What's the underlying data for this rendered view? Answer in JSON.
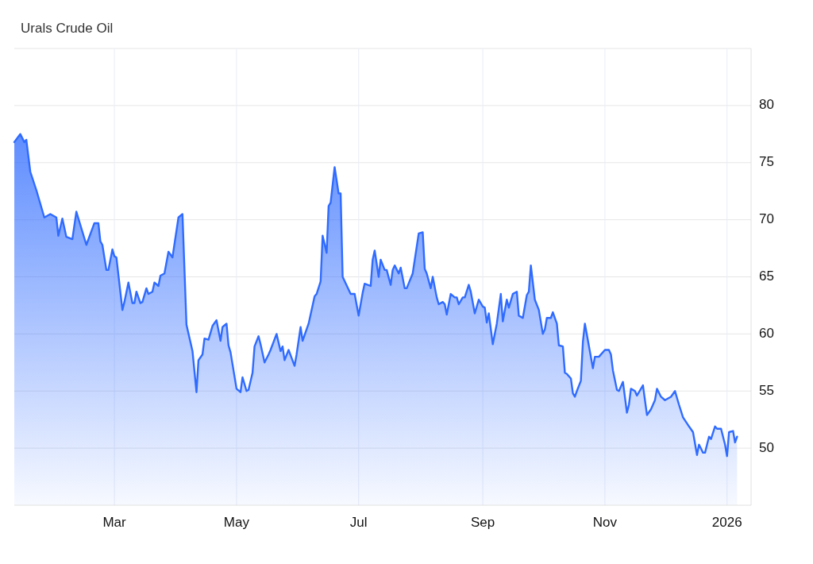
{
  "chart_data": {
    "type": "area",
    "title": "Urals Crude Oil",
    "grid": true,
    "xlim": [
      "2025-01-10",
      "2026-01-13"
    ],
    "xticks": [
      {
        "value": "2025-03-01",
        "label": "Mar"
      },
      {
        "value": "2025-05-01",
        "label": "May"
      },
      {
        "value": "2025-07-01",
        "label": "Jul"
      },
      {
        "value": "2025-09-01",
        "label": "Sep"
      },
      {
        "value": "2025-11-01",
        "label": "Nov"
      },
      {
        "value": "2026-01-01",
        "label": "2026"
      }
    ],
    "ylim": [
      45,
      85
    ],
    "yticks": [
      50,
      55,
      60,
      65,
      70,
      75,
      80
    ],
    "series": [
      {
        "color": "#2f6bff",
        "x": [
          "2025-01-10",
          "2025-01-13",
          "2025-01-15",
          "2025-01-16",
          "2025-01-18",
          "2025-01-21",
          "2025-01-23",
          "2025-01-25",
          "2025-01-28",
          "2025-01-31",
          "2025-02-01",
          "2025-02-03",
          "2025-02-05",
          "2025-02-08",
          "2025-02-10",
          "2025-02-15",
          "2025-02-19",
          "2025-02-21",
          "2025-02-22",
          "2025-02-23",
          "2025-02-25",
          "2025-02-26",
          "2025-02-28",
          "2025-03-01",
          "2025-03-02",
          "2025-03-05",
          "2025-03-06",
          "2025-03-08",
          "2025-03-10",
          "2025-03-11",
          "2025-03-12",
          "2025-03-14",
          "2025-03-15",
          "2025-03-17",
          "2025-03-18",
          "2025-03-20",
          "2025-03-21",
          "2025-03-23",
          "2025-03-24",
          "2025-03-26",
          "2025-03-28",
          "2025-03-30",
          "2025-04-02",
          "2025-04-04",
          "2025-04-06",
          "2025-04-09",
          "2025-04-11",
          "2025-04-12",
          "2025-04-14",
          "2025-04-15",
          "2025-04-17",
          "2025-04-19",
          "2025-04-21",
          "2025-04-23",
          "2025-04-24",
          "2025-04-26",
          "2025-04-27",
          "2025-04-28",
          "2025-05-01",
          "2025-05-03",
          "2025-05-04",
          "2025-05-06",
          "2025-05-07",
          "2025-05-09",
          "2025-05-10",
          "2025-05-12",
          "2025-05-13",
          "2025-05-15",
          "2025-05-17",
          "2025-05-18",
          "2025-05-21",
          "2025-05-23",
          "2025-05-24",
          "2025-05-25",
          "2025-05-27",
          "2025-05-30",
          "2025-05-31",
          "2025-06-02",
          "2025-06-03",
          "2025-06-06",
          "2025-06-09",
          "2025-06-10",
          "2025-06-12",
          "2025-06-13",
          "2025-06-15",
          "2025-06-16",
          "2025-06-17",
          "2025-06-19",
          "2025-06-21",
          "2025-06-22",
          "2025-06-23",
          "2025-06-27",
          "2025-06-29",
          "2025-07-01",
          "2025-07-03",
          "2025-07-04",
          "2025-07-07",
          "2025-07-08",
          "2025-07-09",
          "2025-07-11",
          "2025-07-12",
          "2025-07-14",
          "2025-07-15",
          "2025-07-17",
          "2025-07-18",
          "2025-07-19",
          "2025-07-21",
          "2025-07-22",
          "2025-07-24",
          "2025-07-25",
          "2025-07-28",
          "2025-07-31",
          "2025-08-02",
          "2025-08-03",
          "2025-08-04",
          "2025-08-06",
          "2025-08-07",
          "2025-08-09",
          "2025-08-10",
          "2025-08-12",
          "2025-08-13",
          "2025-08-14",
          "2025-08-16",
          "2025-08-18",
          "2025-08-19",
          "2025-08-20",
          "2025-08-22",
          "2025-08-23",
          "2025-08-25",
          "2025-08-26",
          "2025-08-28",
          "2025-08-30",
          "2025-09-01",
          "2025-09-02",
          "2025-09-03",
          "2025-09-04",
          "2025-09-06",
          "2025-09-08",
          "2025-09-10",
          "2025-09-11",
          "2025-09-13",
          "2025-09-14",
          "2025-09-16",
          "2025-09-18",
          "2025-09-19",
          "2025-09-21",
          "2025-09-23",
          "2025-09-24",
          "2025-09-25",
          "2025-09-27",
          "2025-09-29",
          "2025-10-01",
          "2025-10-02",
          "2025-10-03",
          "2025-10-05",
          "2025-10-06",
          "2025-10-08",
          "2025-10-09",
          "2025-10-11",
          "2025-10-12",
          "2025-10-13",
          "2025-10-15",
          "2025-10-16",
          "2025-10-17",
          "2025-10-18",
          "2025-10-20",
          "2025-10-21",
          "2025-10-22",
          "2025-10-26",
          "2025-10-27",
          "2025-10-29",
          "2025-11-01",
          "2025-11-03",
          "2025-11-04",
          "2025-11-05",
          "2025-11-07",
          "2025-11-08",
          "2025-11-10",
          "2025-11-12",
          "2025-11-13",
          "2025-11-14",
          "2025-11-16",
          "2025-11-17",
          "2025-11-20",
          "2025-11-22",
          "2025-11-24",
          "2025-11-26",
          "2025-11-27",
          "2025-11-29",
          "2025-12-01",
          "2025-12-04",
          "2025-12-06",
          "2025-12-08",
          "2025-12-10",
          "2025-12-13",
          "2025-12-15",
          "2025-12-17",
          "2025-12-18",
          "2025-12-20",
          "2025-12-21",
          "2025-12-23",
          "2025-12-24",
          "2025-12-26",
          "2025-12-27",
          "2025-12-29",
          "2025-12-31",
          "2026-01-01",
          "2026-01-02",
          "2026-01-04",
          "2026-01-05",
          "2026-01-06"
        ],
        "values": [
          76.8,
          77.5,
          76.8,
          77.0,
          74.2,
          72.6,
          71.4,
          70.2,
          70.5,
          70.2,
          68.6,
          70.1,
          68.5,
          68.3,
          70.7,
          67.8,
          69.7,
          69.7,
          68.1,
          67.8,
          65.6,
          65.6,
          67.4,
          66.8,
          66.7,
          62.1,
          62.8,
          64.5,
          62.7,
          62.7,
          63.7,
          62.7,
          62.8,
          64.0,
          63.5,
          63.7,
          64.5,
          64.2,
          65.1,
          65.3,
          67.2,
          66.7,
          70.2,
          70.5,
          60.8,
          58.5,
          54.9,
          57.7,
          58.2,
          59.6,
          59.5,
          60.7,
          61.2,
          59.4,
          60.6,
          60.9,
          59.0,
          58.4,
          55.2,
          54.9,
          56.2,
          55.0,
          55.1,
          56.6,
          58.9,
          59.8,
          59.1,
          57.5,
          58.2,
          58.6,
          60.0,
          58.5,
          58.9,
          57.7,
          58.6,
          57.2,
          58.2,
          60.6,
          59.4,
          60.9,
          63.3,
          63.5,
          64.6,
          68.6,
          67.1,
          71.2,
          71.5,
          74.6,
          72.3,
          72.3,
          65.0,
          63.5,
          63.5,
          61.6,
          63.6,
          64.4,
          64.2,
          66.5,
          67.3,
          65.0,
          66.5,
          65.6,
          65.6,
          64.3,
          65.6,
          66.0,
          65.3,
          65.8,
          64.0,
          64.0,
          65.3,
          68.8,
          68.9,
          65.7,
          65.3,
          64.0,
          65.0,
          63.2,
          62.6,
          62.8,
          62.6,
          61.7,
          63.5,
          63.2,
          63.2,
          62.6,
          63.2,
          63.2,
          64.3,
          63.7,
          61.8,
          63.0,
          62.4,
          62.3,
          61.0,
          61.8,
          59.1,
          60.9,
          63.5,
          61.1,
          63.0,
          62.3,
          63.5,
          63.7,
          61.6,
          61.4,
          63.4,
          63.7,
          66.0,
          63.0,
          62.1,
          60.0,
          60.4,
          61.4,
          61.4,
          61.9,
          60.9,
          59.0,
          58.9,
          56.6,
          56.5,
          56.1,
          54.8,
          54.5,
          55.0,
          55.9,
          59.3,
          60.9,
          57.0,
          58.0,
          58.0,
          58.6,
          58.6,
          58.2,
          56.8,
          55.1,
          55.0,
          55.8,
          53.1,
          53.8,
          55.2,
          55.0,
          54.6,
          55.5,
          52.9,
          53.4,
          54.2,
          55.2,
          54.5,
          54.2,
          54.5,
          55.0,
          53.8,
          52.7,
          51.9,
          51.4,
          49.4,
          50.3,
          49.6,
          49.6,
          51.0,
          50.8,
          51.9,
          51.7,
          51.7,
          50.3,
          49.3,
          51.4,
          51.5,
          50.5,
          51.0
        ]
      }
    ]
  }
}
